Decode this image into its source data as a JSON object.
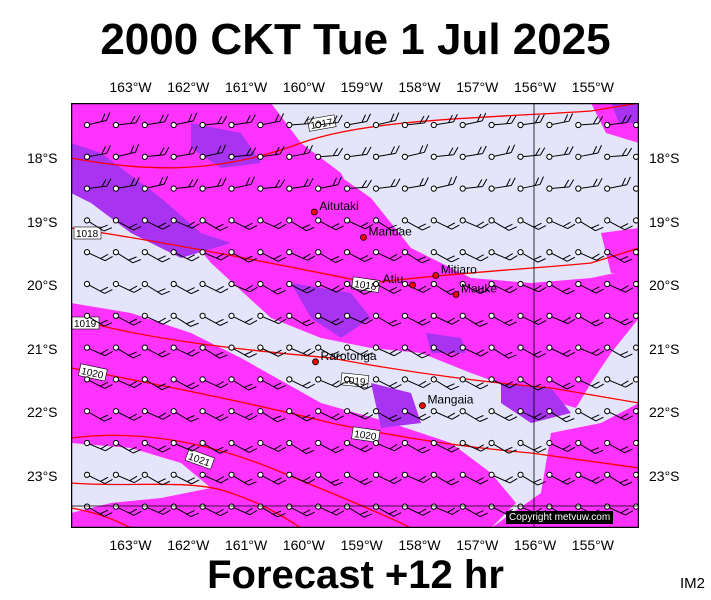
{
  "title": "2000 CKT Tue 1 Jul 2025",
  "footer": "Forecast +12 hr",
  "product_code": "IM2",
  "copyright": "Copyright metvuw.com",
  "lon_labels": [
    "163°W",
    "162°W",
    "161°W",
    "160°W",
    "159°W",
    "158°W",
    "157°W",
    "156°W",
    "155°W"
  ],
  "lat_labels": [
    "18°S",
    "19°S",
    "20°S",
    "21°S",
    "22°S",
    "23°S"
  ],
  "places": [
    {
      "name": "Aitutaki",
      "lon": -159.8,
      "lat": -18.85
    },
    {
      "name": "Manuae",
      "lon": -158.95,
      "lat": -19.25
    },
    {
      "name": "Mitiaro",
      "lon": -157.7,
      "lat": -19.85
    },
    {
      "name": "Atiu",
      "lon": -158.1,
      "lat": -20.0
    },
    {
      "name": "Mauke",
      "lon": -157.35,
      "lat": -20.15
    },
    {
      "name": "Rarotonga",
      "lon": -159.78,
      "lat": -21.21
    },
    {
      "name": "Mangaia",
      "lon": -157.93,
      "lat": -21.9
    }
  ],
  "isobars": [
    {
      "label": "1017",
      "value": 1017
    },
    {
      "label": "1018",
      "value": 1018
    },
    {
      "label": "1019",
      "value": 1019
    },
    {
      "label": "1020",
      "value": 1020
    },
    {
      "label": "1021",
      "value": 1021
    }
  ],
  "colors": {
    "background": "#e4e4fa",
    "rain_light": "#ff33ff",
    "rain_heavy": "#a833f0",
    "isobar": "#ff0000"
  }
}
